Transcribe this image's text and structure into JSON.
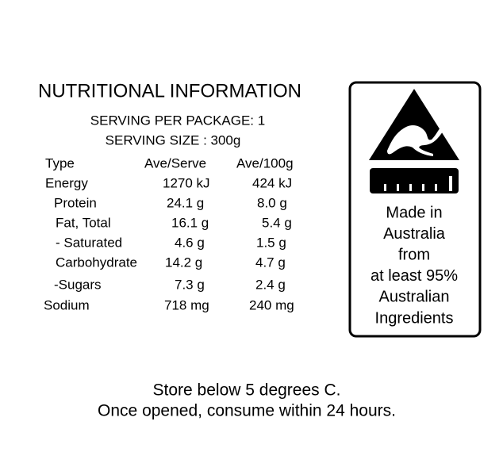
{
  "header": {
    "title": "NUTRITIONAL INFORMATION",
    "serving_per_package": "SERVING PER PACKAGE: 1",
    "serving_size": "SERVING SIZE : 300g"
  },
  "table": {
    "columns": [
      "Type",
      "Ave/Serve",
      "Ave/100g"
    ],
    "rows": [
      [
        "Energy",
        "1270 kJ",
        "424 kJ"
      ],
      [
        "Protein",
        "24.1 g",
        "8.0 g"
      ],
      [
        "Fat, Total",
        "16.1 g",
        "5.4 g"
      ],
      [
        "- Saturated",
        "4.6 g",
        "1.5 g"
      ],
      [
        "Carbohydrate",
        "14.2 g",
        "4.7 g"
      ],
      [
        "-Sugars",
        "7.3 g",
        "2.4 g"
      ],
      [
        "Sodium",
        "718 mg",
        "240 mg"
      ]
    ]
  },
  "badge": {
    "lines": [
      "Made in",
      "Australia",
      "from",
      "at least 95%",
      "Australian",
      "Ingredients"
    ]
  },
  "footer": {
    "lines": [
      "Store below 5 degrees C.",
      "Once opened, consume within 24 hours."
    ]
  }
}
